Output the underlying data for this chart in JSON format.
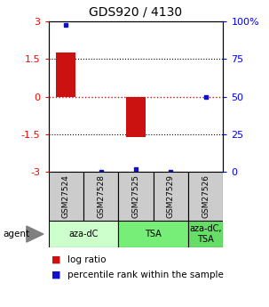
{
  "title": "GDS920 / 4130",
  "samples": [
    "GSM27524",
    "GSM27528",
    "GSM27525",
    "GSM27529",
    "GSM27526"
  ],
  "log_ratios": [
    1.75,
    0.0,
    -1.6,
    0.0,
    0.0
  ],
  "percentile_ranks": [
    98.0,
    0.0,
    2.0,
    0.0,
    50.0
  ],
  "agent_groups": [
    {
      "label": "aza-dC",
      "span": [
        0,
        2
      ],
      "color": "#ccffcc"
    },
    {
      "label": "TSA",
      "span": [
        2,
        4
      ],
      "color": "#77ee77"
    },
    {
      "label": "aza-dC,\nTSA",
      "span": [
        4,
        5
      ],
      "color": "#66dd66"
    }
  ],
  "ylim": [
    -3,
    3
  ],
  "yticks_left": [
    -3,
    -1.5,
    0,
    1.5,
    3
  ],
  "yticks_right": [
    0,
    25,
    50,
    75,
    100
  ],
  "bar_color": "#cc1111",
  "dot_color": "#1111cc",
  "sample_box_color": "#cccccc",
  "fig_width": 3.03,
  "fig_height": 3.45,
  "dpi": 100
}
